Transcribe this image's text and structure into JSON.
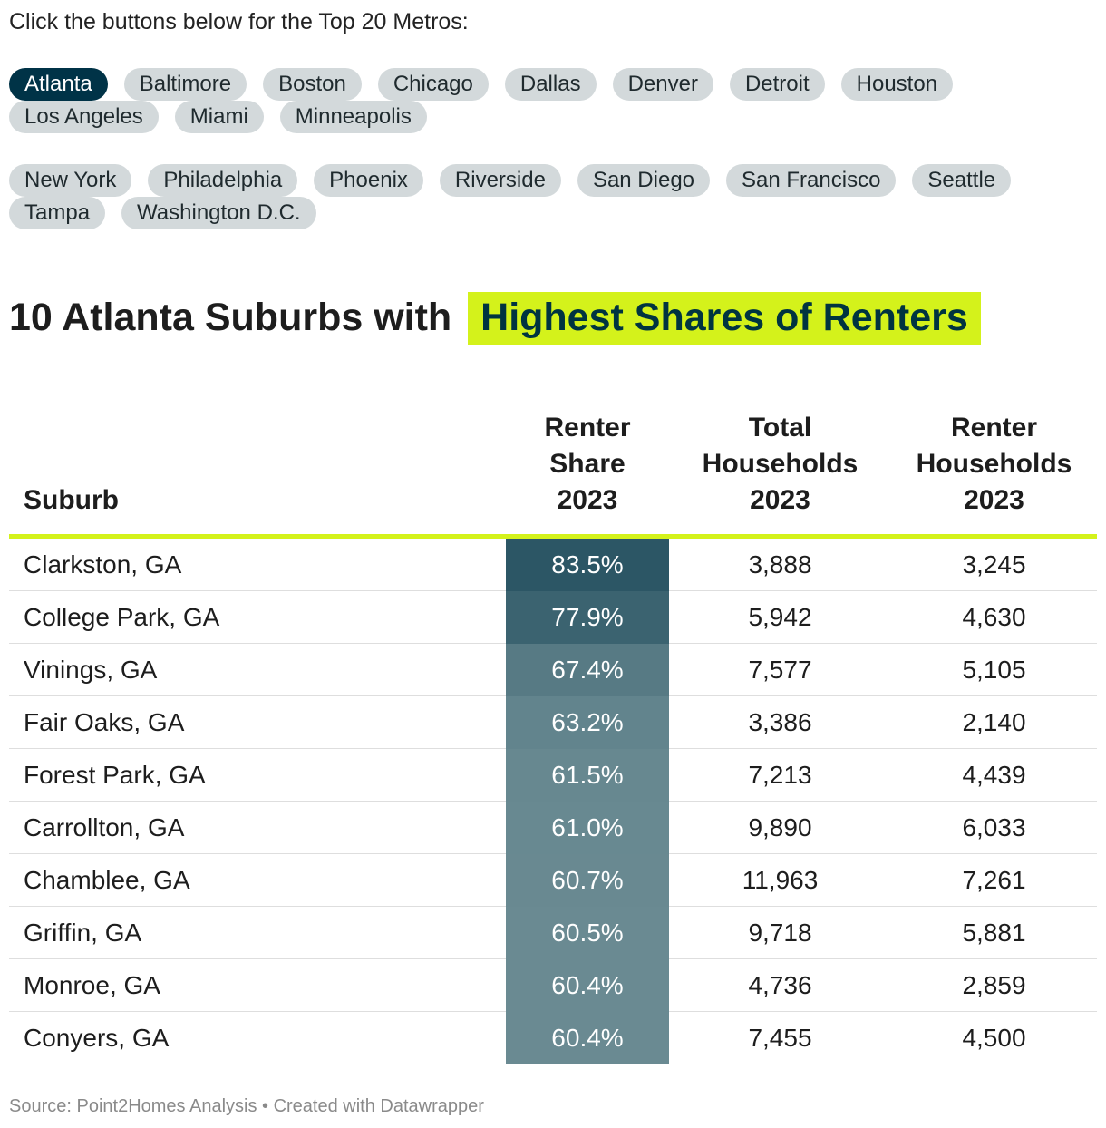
{
  "intro_text": "Click the buttons below for the Top 20 Metros:",
  "metro_buttons": {
    "row1": [
      "Atlanta",
      "Baltimore",
      "Boston",
      "Chicago",
      "Dallas",
      "Denver",
      "Detroit",
      "Houston",
      "Los Angeles",
      "Miami",
      "Minneapolis"
    ],
    "row2": [
      "New York",
      "Philadelphia",
      "Phoenix",
      "Riverside",
      "San Diego",
      "San Francisco",
      "Seattle",
      "Tampa",
      "Washington D.C."
    ],
    "selected": "Atlanta"
  },
  "title": {
    "plain": "10 Atlanta Suburbs with",
    "highlight": "Highest Shares of Renters"
  },
  "colors": {
    "accent": "#d4f21b",
    "active_button": "#003347",
    "button": "#d3d9db",
    "heat_max": "#2c5665",
    "heat_min": "#6a8a92"
  },
  "chart_data": {
    "type": "table",
    "columns": [
      "Suburb",
      "Renter Share 2023",
      "Total Households 2023",
      "Renter Households 2023"
    ],
    "header_lines": [
      [
        "Suburb"
      ],
      [
        "Renter",
        "Share",
        "2023"
      ],
      [
        "Total",
        "Households",
        "2023"
      ],
      [
        "Renter",
        "Households",
        "2023"
      ]
    ],
    "rows": [
      {
        "suburb": "Clarkston, GA",
        "share": "83.5%",
        "share_value": 83.5,
        "total": "3,888",
        "renters": "3,245"
      },
      {
        "suburb": "College Park, GA",
        "share": "77.9%",
        "share_value": 77.9,
        "total": "5,942",
        "renters": "4,630"
      },
      {
        "suburb": "Vinings, GA",
        "share": "67.4%",
        "share_value": 67.4,
        "total": "7,577",
        "renters": "5,105"
      },
      {
        "suburb": "Fair Oaks, GA",
        "share": "63.2%",
        "share_value": 63.2,
        "total": "3,386",
        "renters": "2,140"
      },
      {
        "suburb": "Forest Park, GA",
        "share": "61.5%",
        "share_value": 61.5,
        "total": "7,213",
        "renters": "4,439"
      },
      {
        "suburb": "Carrollton, GA",
        "share": "61.0%",
        "share_value": 61.0,
        "total": "9,890",
        "renters": "6,033"
      },
      {
        "suburb": "Chamblee, GA",
        "share": "60.7%",
        "share_value": 60.7,
        "total": "11,963",
        "renters": "7,261"
      },
      {
        "suburb": "Griffin, GA",
        "share": "60.5%",
        "share_value": 60.5,
        "total": "9,718",
        "renters": "5,881"
      },
      {
        "suburb": "Monroe, GA",
        "share": "60.4%",
        "share_value": 60.4,
        "total": "4,736",
        "renters": "2,859"
      },
      {
        "suburb": "Conyers, GA",
        "share": "60.4%",
        "share_value": 60.4,
        "total": "7,455",
        "renters": "4,500"
      }
    ]
  },
  "source": "Source: Point2Homes Analysis • Created with Datawrapper"
}
